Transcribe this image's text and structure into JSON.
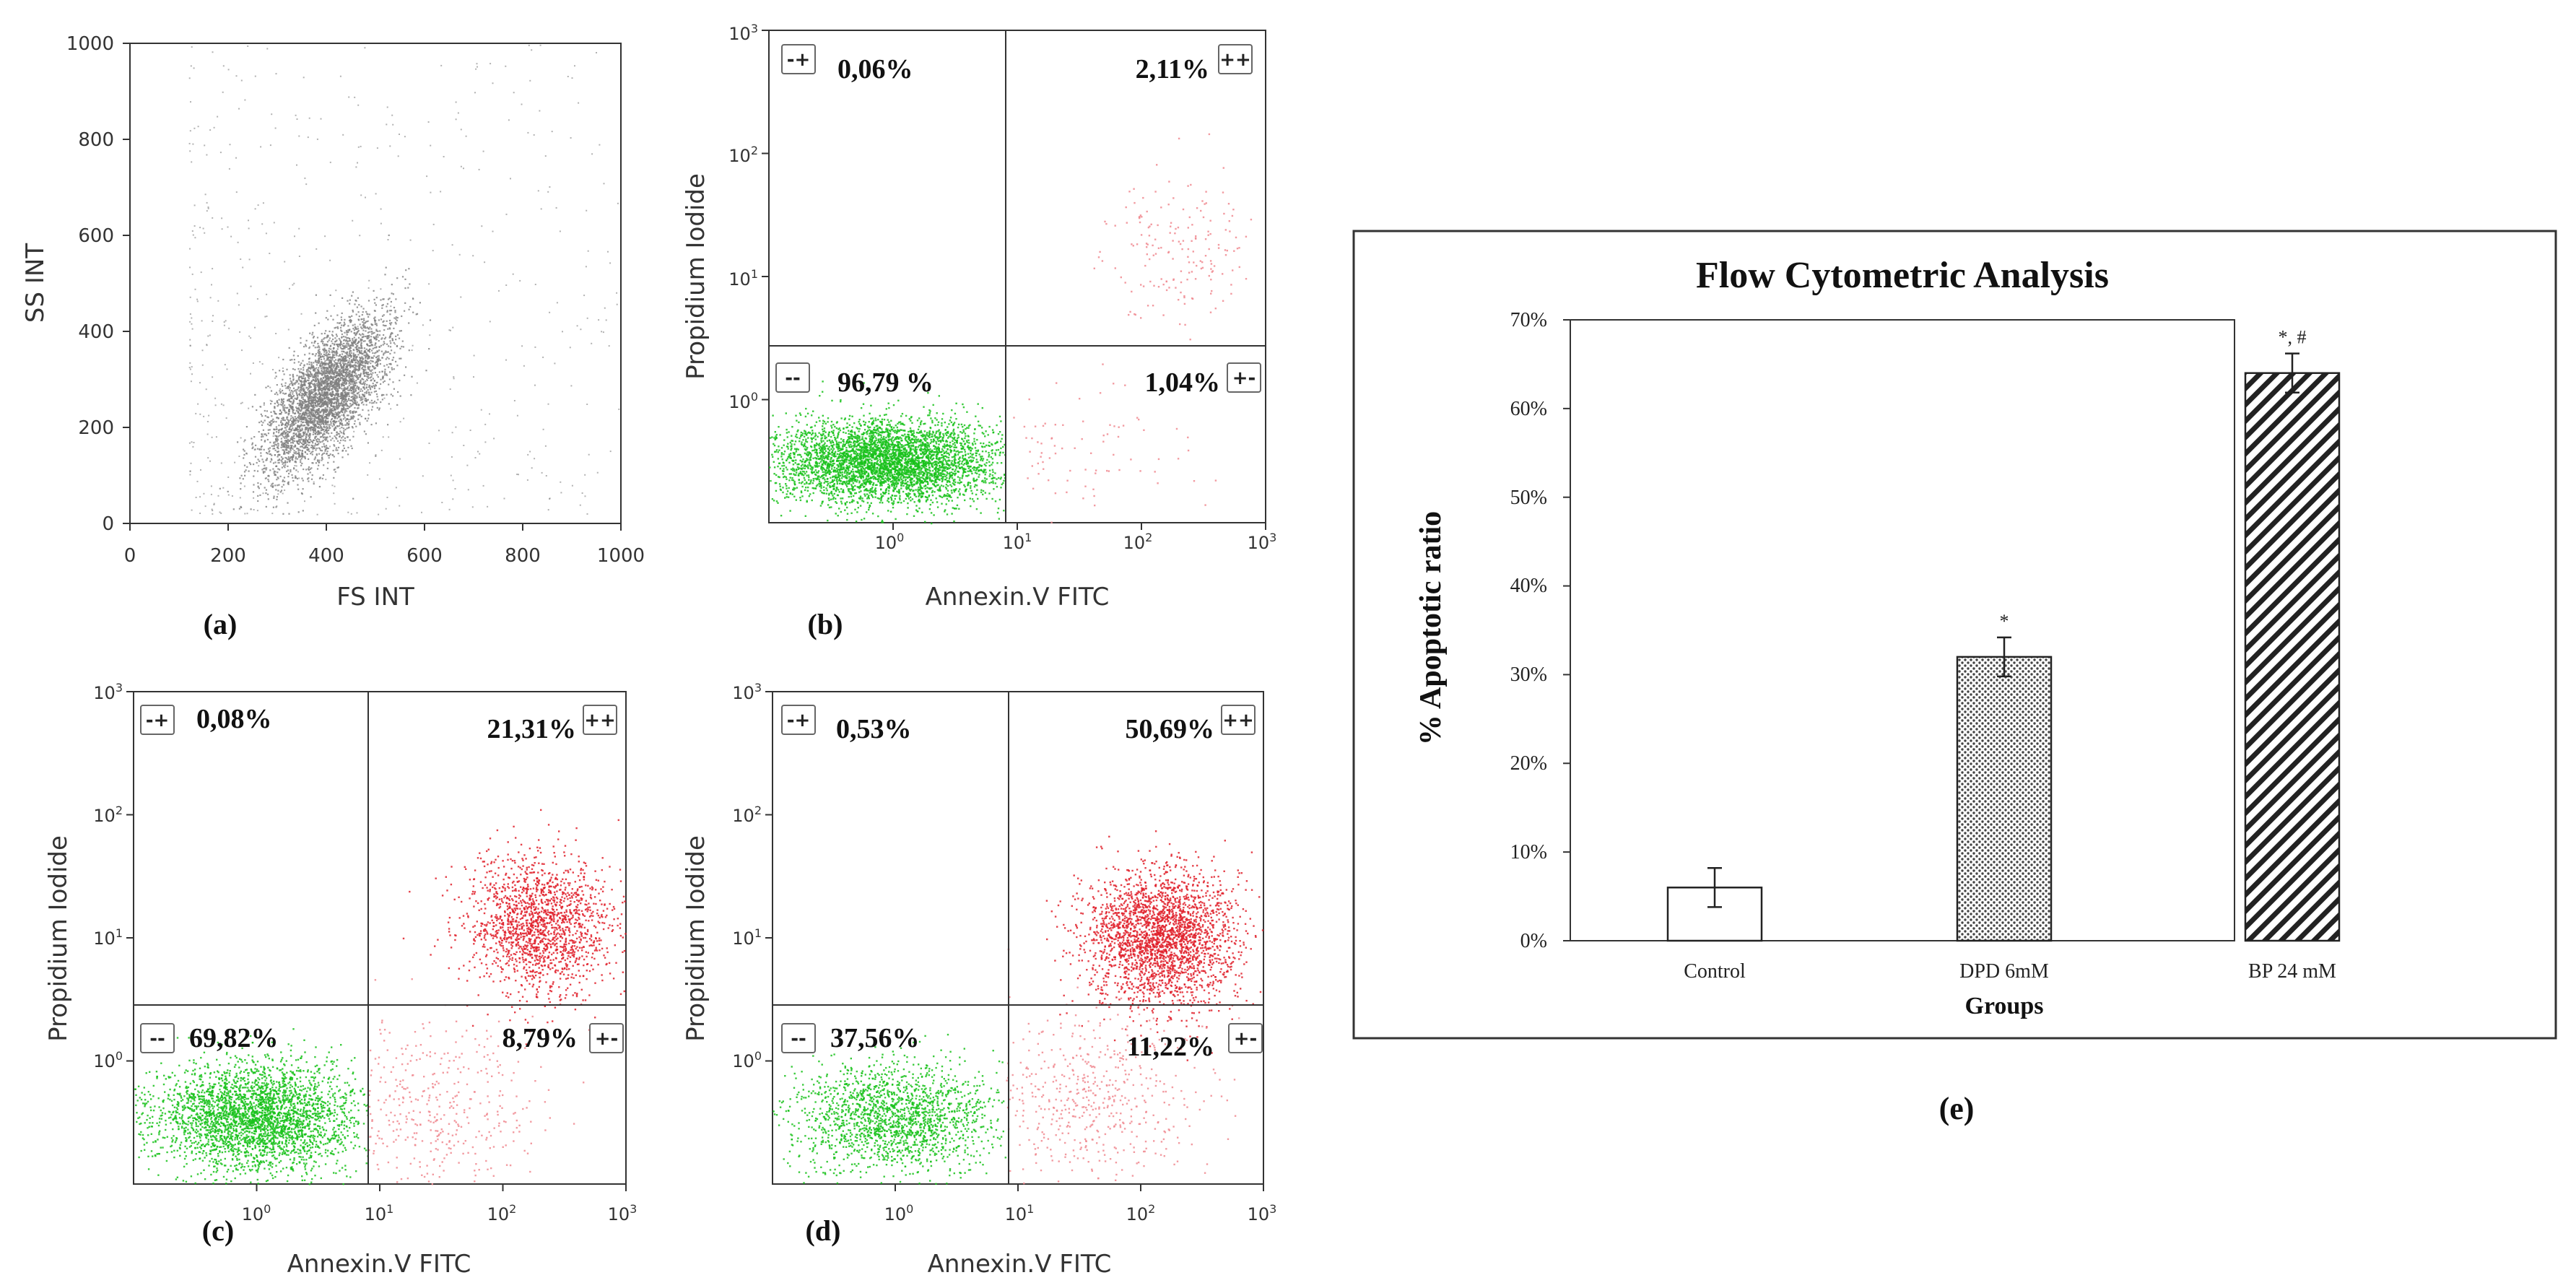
{
  "colors": {
    "gray": "#7f7f7f",
    "green": "#19c21b",
    "red": "#e0202a",
    "lightred": "#f08a90",
    "axis": "#333333"
  },
  "chart_data": [
    {
      "id": "a",
      "type": "scatter",
      "panel_label": "(a)",
      "xlabel": "FS INT",
      "ylabel": "SS INT",
      "xlim": [
        0,
        1000
      ],
      "ylim": [
        0,
        1000
      ],
      "xticks": [
        "0",
        "200",
        "400",
        "600",
        "800",
        "1000"
      ],
      "yticks": [
        "0",
        "200",
        "400",
        "600",
        "800",
        "1000"
      ],
      "populations": [
        {
          "name": "main",
          "color": "gray",
          "n": 4200,
          "center": [
            400,
            270
          ],
          "sd_major": 95,
          "sd_minor": 40,
          "angle_deg": 55
        },
        {
          "name": "scatter",
          "color": "gray",
          "n": 520,
          "range_x": [
            120,
            1000
          ],
          "range_y": [
            20,
            1000
          ]
        }
      ]
    },
    {
      "id": "b",
      "type": "scatter",
      "panel_label": "(b)",
      "xlabel": "Annexin.V FITC",
      "ylabel": "Propidium Iodide",
      "scale": "log",
      "xlim_decades": [
        -1,
        3
      ],
      "ylim_decades": [
        -1,
        3
      ],
      "quadrant_x": 0.9,
      "quadrant_y": 0.45,
      "quadrants": [
        {
          "code": "-+",
          "pct": "0,06%"
        },
        {
          "code": "++",
          "pct": "2,11%"
        },
        {
          "code": "--",
          "pct": "96,79 %"
        },
        {
          "code": "+-",
          "pct": "1,04%"
        }
      ],
      "populations": [
        {
          "name": "live",
          "color": "green",
          "n": 4200,
          "center": [
            -0.05,
            -0.5
          ],
          "sd": [
            0.45,
            0.17
          ]
        },
        {
          "name": "late",
          "color": "lightred",
          "n": 180,
          "center": [
            2.3,
            1.25
          ],
          "sd": [
            0.3,
            0.28
          ]
        },
        {
          "name": "early",
          "color": "lightred",
          "n": 90,
          "center": [
            1.5,
            -0.4
          ],
          "sd": [
            0.45,
            0.3
          ]
        }
      ]
    },
    {
      "id": "c",
      "type": "scatter",
      "panel_label": "(c)",
      "xlabel": "Annexin.V FITC",
      "ylabel": "Propidium Iodide",
      "scale": "log",
      "xlim_decades": [
        -1,
        3
      ],
      "ylim_decades": [
        -1,
        3
      ],
      "quadrant_x": 0.9,
      "quadrant_y": 0.45,
      "quadrants": [
        {
          "code": "-+",
          "pct": "0,08%"
        },
        {
          "code": "++",
          "pct": "21,31%"
        },
        {
          "code": "--",
          "pct": "69,82%"
        },
        {
          "code": "+-",
          "pct": "8,79%"
        }
      ],
      "populations": [
        {
          "name": "live",
          "color": "green",
          "n": 3200,
          "center": [
            0.0,
            -0.45
          ],
          "sd": [
            0.42,
            0.22
          ]
        },
        {
          "name": "late",
          "color": "red",
          "n": 1700,
          "center": [
            2.3,
            1.1
          ],
          "sd": [
            0.3,
            0.28
          ]
        },
        {
          "name": "early",
          "color": "lightred",
          "n": 450,
          "center": [
            1.4,
            -0.4
          ],
          "sd": [
            0.45,
            0.35
          ]
        }
      ]
    },
    {
      "id": "d",
      "type": "scatter",
      "panel_label": "(d)",
      "xlabel": "Annexin.V FITC",
      "ylabel": "Propidium Iodide",
      "scale": "log",
      "xlim_decades": [
        -1,
        3
      ],
      "ylim_decades": [
        -1,
        3
      ],
      "quadrant_x": 0.9,
      "quadrant_y": 0.45,
      "quadrants": [
        {
          "code": "-+",
          "pct": "0,53%"
        },
        {
          "code": "++",
          "pct": "50,69%"
        },
        {
          "code": "--",
          "pct": "37,56%"
        },
        {
          "code": "+-",
          "pct": "11,22%"
        }
      ],
      "populations": [
        {
          "name": "live",
          "color": "green",
          "n": 1800,
          "center": [
            0.0,
            -0.45
          ],
          "sd": [
            0.42,
            0.22
          ]
        },
        {
          "name": "late",
          "color": "red",
          "n": 2600,
          "center": [
            2.15,
            1.0
          ],
          "sd": [
            0.3,
            0.28
          ]
        },
        {
          "name": "early",
          "color": "lightred",
          "n": 550,
          "center": [
            1.6,
            -0.3
          ],
          "sd": [
            0.45,
            0.35
          ]
        }
      ]
    },
    {
      "id": "e",
      "type": "bar",
      "panel_label": "(e)",
      "title": "Flow Cytometric Analysis",
      "xlabel": "Groups",
      "ylabel": "% Apoptotic ratio",
      "categories": [
        "Control",
        "DPD 6mM",
        "BP 24 mM"
      ],
      "values": [
        0.06,
        0.32,
        0.64
      ],
      "errors": [
        0.022,
        0.022,
        0.022
      ],
      "annotations": [
        "",
        "*",
        "*, #"
      ],
      "fills": [
        "plain",
        "dots",
        "hatch"
      ],
      "ylim": [
        0,
        0.7
      ],
      "yticks": [
        "0%",
        "10%",
        "20%",
        "30%",
        "40%",
        "50%",
        "60%",
        "70%"
      ]
    }
  ]
}
